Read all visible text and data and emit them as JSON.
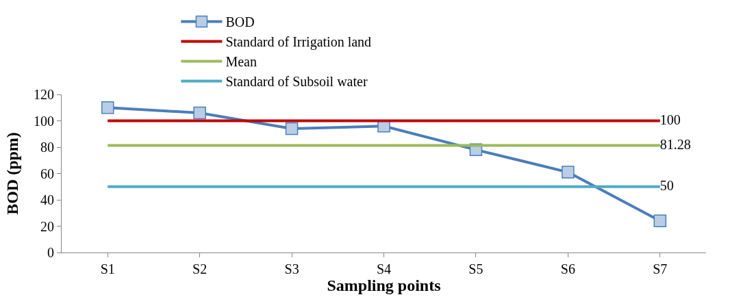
{
  "chart_data": {
    "type": "line",
    "xlabel": "Sampling points",
    "ylabel": "BOD (ppm)",
    "categories": [
      "S1",
      "S2",
      "S3",
      "S4",
      "S5",
      "S6",
      "S7"
    ],
    "ylim": [
      0,
      120
    ],
    "yticks": [
      0,
      20,
      40,
      60,
      80,
      100,
      120
    ],
    "grid": false,
    "legend": "top",
    "series": [
      {
        "name": "BOD",
        "color": "#4a7ebb",
        "marker": "square",
        "values": [
          110,
          106,
          94,
          96,
          78,
          61,
          24
        ]
      },
      {
        "name": "Standard of Irrigation land",
        "color": "#c00000",
        "marker": "none",
        "values": [
          100,
          100,
          100,
          100,
          100,
          100,
          100
        ],
        "value_labels": [
          null,
          null,
          null,
          null,
          null,
          null,
          "100"
        ]
      },
      {
        "name": "Mean",
        "color": "#9bbb59",
        "marker": "none",
        "values": [
          81.28,
          81.28,
          81.28,
          81.28,
          81.28,
          81.28,
          81.28
        ],
        "value_labels": [
          null,
          null,
          null,
          null,
          null,
          null,
          "81.28"
        ]
      },
      {
        "name": "Standard of Subsoil water",
        "color": "#4bacc6",
        "marker": "none",
        "values": [
          50,
          50,
          50,
          50,
          50,
          50,
          50
        ],
        "value_labels": [
          null,
          null,
          null,
          null,
          null,
          null,
          "50"
        ]
      }
    ]
  }
}
